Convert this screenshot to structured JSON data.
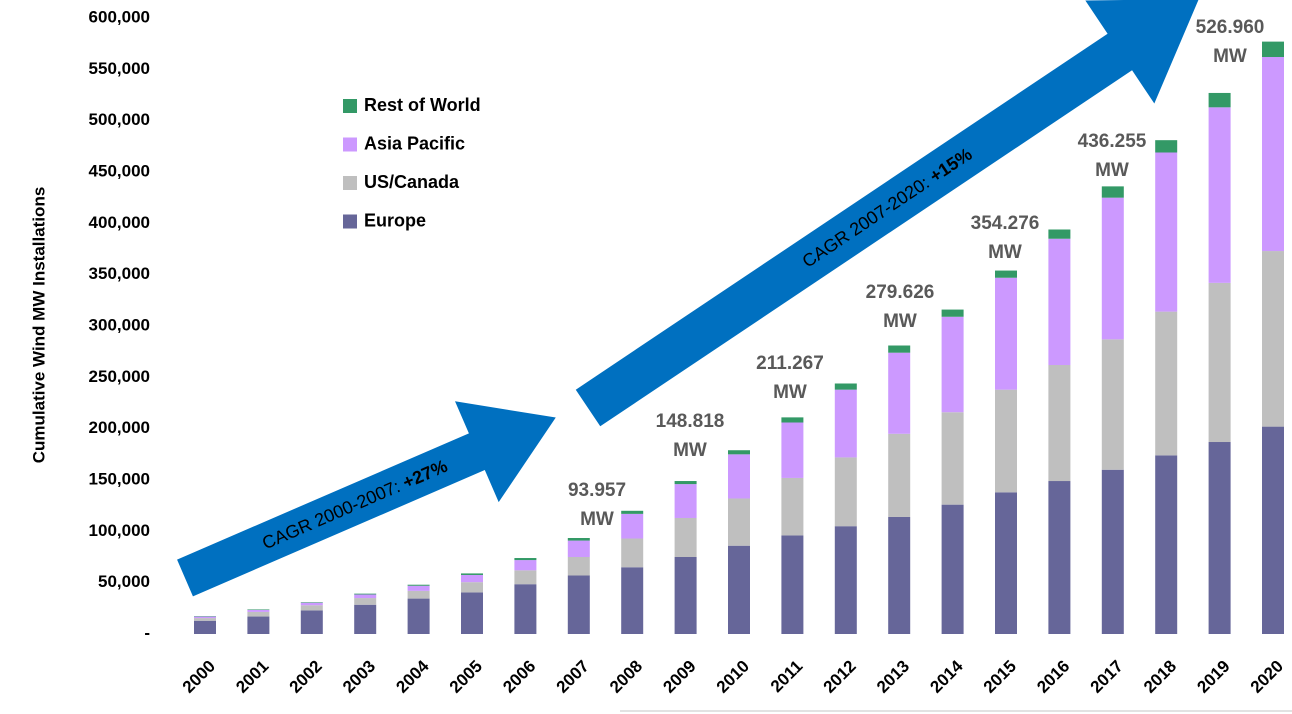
{
  "chart_data": {
    "type": "stacked_bar",
    "y_axis_label": "Cumulative Wind MW Installations",
    "categories": [
      "2000",
      "2001",
      "2002",
      "2003",
      "2004",
      "2005",
      "2006",
      "2007",
      "2008",
      "2009",
      "2010",
      "2011",
      "2012",
      "2013",
      "2014",
      "2015",
      "2016",
      "2017",
      "2018",
      "2019",
      "2020"
    ],
    "series": [
      {
        "name": "Europe",
        "color": "#666699",
        "values": [
          12900,
          17000,
          23000,
          28500,
          34500,
          40500,
          48500,
          57000,
          65000,
          75000,
          86000,
          96000,
          105000,
          114000,
          126000,
          138000,
          149000,
          160000,
          174000,
          187000,
          202000
        ]
      },
      {
        "name": "US/Canada",
        "color": "#bfbfbf",
        "values": [
          2600,
          4500,
          5000,
          6500,
          7500,
          10000,
          13500,
          18000,
          28000,
          38000,
          46000,
          56000,
          67000,
          81000,
          90000,
          100000,
          113000,
          127000,
          140000,
          155000,
          171000
        ]
      },
      {
        "name": "Asia Pacific",
        "color": "#cc99ff",
        "values": [
          1500,
          2000,
          2500,
          3500,
          5000,
          7000,
          10000,
          16000,
          24000,
          33000,
          43000,
          54000,
          66000,
          79000,
          93000,
          109000,
          123000,
          138000,
          155000,
          171000,
          189000
        ]
      },
      {
        "name": "Rest of World",
        "color": "#339966",
        "values": [
          400,
          500,
          500,
          800,
          1000,
          1500,
          2000,
          2500,
          3000,
          3000,
          4000,
          5000,
          6000,
          7000,
          7000,
          7000,
          9000,
          11000,
          12000,
          14000,
          15000
        ]
      }
    ],
    "ylim": [
      0,
      600000
    ],
    "yticks": [
      {
        "value": 0,
        "label": "-"
      },
      {
        "value": 50000,
        "label": "50,000"
      },
      {
        "value": 100000,
        "label": "100,000"
      },
      {
        "value": 150000,
        "label": "150,000"
      },
      {
        "value": 200000,
        "label": "200,000"
      },
      {
        "value": 250000,
        "label": "250,000"
      },
      {
        "value": 300000,
        "label": "300,000"
      },
      {
        "value": 350000,
        "label": "350,000"
      },
      {
        "value": 400000,
        "label": "400,000"
      },
      {
        "value": 450000,
        "label": "450,000"
      },
      {
        "value": 500000,
        "label": "500,000"
      },
      {
        "value": 550000,
        "label": "550,000"
      },
      {
        "value": 600000,
        "label": "600,000"
      }
    ],
    "annotations": [
      [
        "93.957",
        "MW"
      ],
      [
        "148.818",
        "MW"
      ],
      [
        "211.267",
        "MW"
      ],
      [
        "279.626",
        "MW"
      ],
      [
        "354.276",
        "MW"
      ],
      [
        "436.255",
        "MW"
      ],
      [
        "526.960",
        "MW"
      ]
    ],
    "arrows": [
      {
        "text": "CAGR 2000-2007: ",
        "emphasis": "+27%"
      },
      {
        "text": "CAGR 2007-2020: ",
        "emphasis": "+15%"
      }
    ]
  }
}
